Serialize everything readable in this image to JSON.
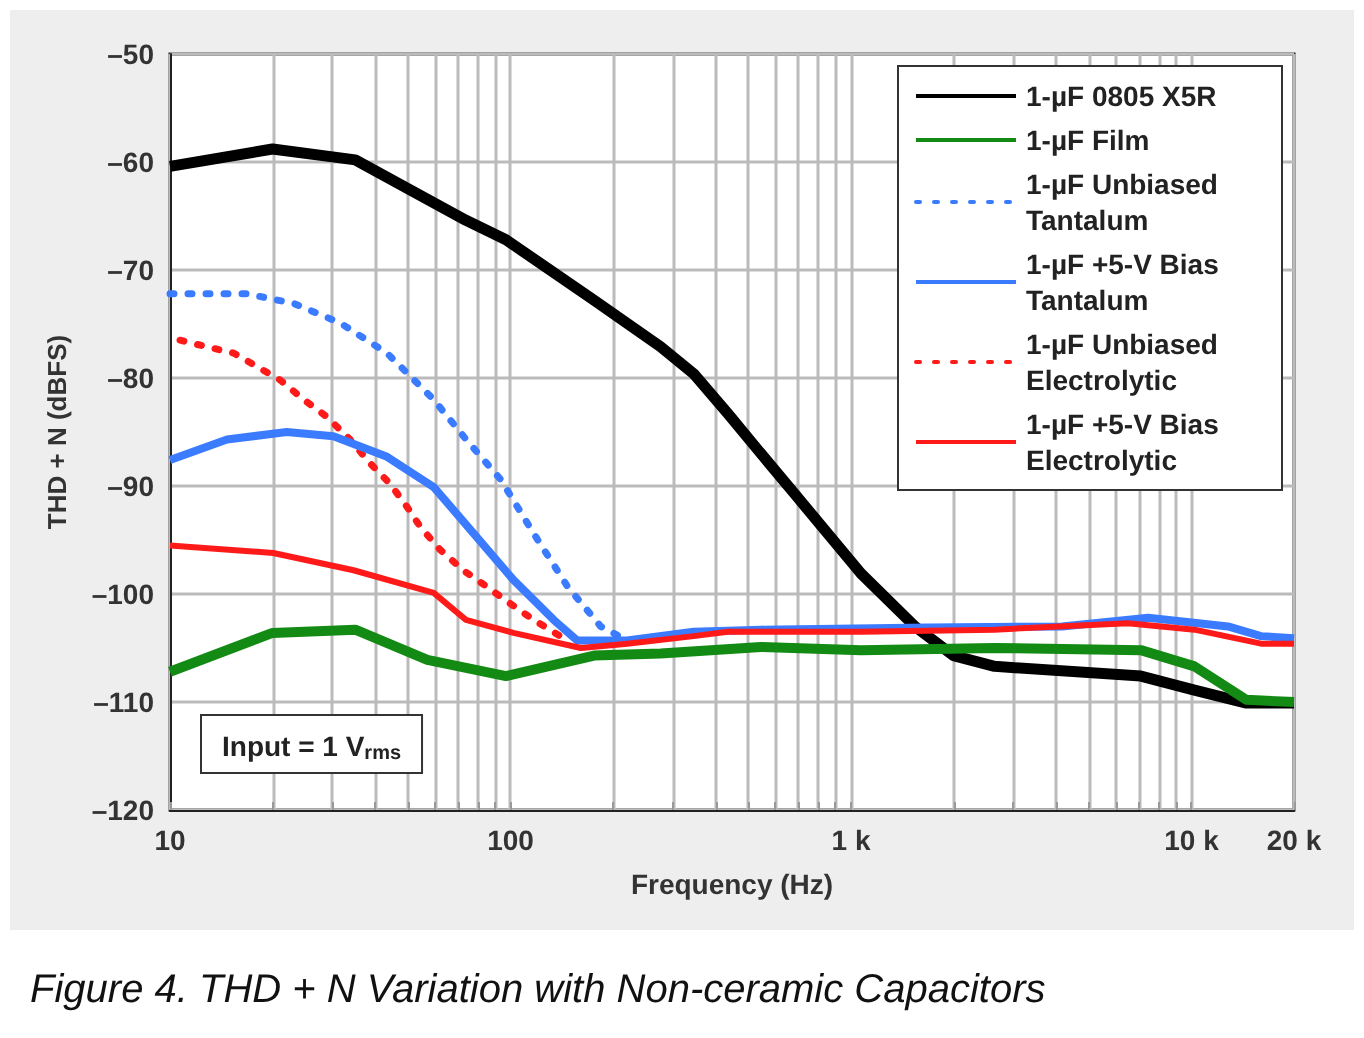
{
  "chart_data": {
    "type": "line",
    "title": "Figure 4. THD + N Variation with Non-ceramic Capacitors",
    "xlabel": "Frequency (Hz)",
    "ylabel": "THD + N (dBFS)",
    "log": "x",
    "grid": true,
    "legend": "top right",
    "marker": "none",
    "xlim": [
      10,
      20000
    ],
    "ylim": [
      -120,
      -50
    ],
    "xticks": [
      10,
      {
        "value": 20,
        "label": null
      },
      {
        "value": 30,
        "label": null
      },
      {
        "value": 40,
        "label": null
      },
      {
        "value": 50,
        "label": null
      },
      {
        "value": 60,
        "label": null
      },
      {
        "value": 70,
        "label": null
      },
      {
        "value": 80,
        "label": null
      },
      {
        "value": 90,
        "label": null
      },
      100,
      {
        "value": 200,
        "label": null
      },
      {
        "value": 300,
        "label": null
      },
      {
        "value": 400,
        "label": null
      },
      {
        "value": 500,
        "label": null
      },
      {
        "value": 600,
        "label": null
      },
      {
        "value": 700,
        "label": null
      },
      {
        "value": 800,
        "label": null
      },
      {
        "value": 900,
        "label": null
      },
      {
        "value": 1000,
        "label": "1 k"
      },
      {
        "value": 2000,
        "label": null
      },
      {
        "value": 3000,
        "label": null
      },
      {
        "value": 4000,
        "label": null
      },
      {
        "value": 5000,
        "label": null
      },
      {
        "value": 6000,
        "label": null
      },
      {
        "value": 7000,
        "label": null
      },
      {
        "value": 8000,
        "label": null
      },
      {
        "value": 9000,
        "label": null
      },
      {
        "value": 10000,
        "label": "10 k"
      },
      {
        "value": 20000,
        "label": "20 k"
      }
    ],
    "yticks": [
      {
        "value": -120,
        "label": "–120"
      },
      {
        "value": -110,
        "label": "–110"
      },
      {
        "value": -100,
        "label": "–100"
      },
      {
        "value": -90,
        "label": "–90"
      },
      {
        "value": -80,
        "label": "–80"
      },
      {
        "value": -70,
        "label": "–70"
      },
      {
        "value": -60,
        "label": "–60"
      },
      {
        "value": -50,
        "label": "–50"
      }
    ],
    "annotations": [
      "Input = 1 V$_{rms}$"
    ],
    "series": [
      {
        "name": "1-µF 0805 X5R",
        "color": "#000000",
        "line_style": "solid",
        "x": [
          10,
          20,
          35,
          74,
          97,
          176,
          276,
          345,
          435,
          544,
          682,
          1070,
          1540,
          2000,
          2640,
          7100,
          10200,
          14500,
          20000
        ],
        "values": [
          -60.4,
          -58.8,
          -59.8,
          -65.4,
          -67.2,
          -72.8,
          -77.1,
          -79.6,
          -83.3,
          -87,
          -90.7,
          -98.1,
          -103,
          -105.7,
          -106.7,
          -107.6,
          -108.9,
          -110.1,
          -110.1
        ]
      },
      {
        "name": "1-µF Film",
        "color": "#138a13",
        "line_style": "solid",
        "x": [
          10,
          20,
          35,
          57,
          97,
          176,
          276,
          544,
          1070,
          2640,
          7100,
          10200,
          14500,
          20000
        ],
        "values": [
          -107.2,
          -103.6,
          -103.3,
          -106.1,
          -107.6,
          -105.7,
          -105.5,
          -104.9,
          -105.2,
          -105,
          -105.2,
          -106.7,
          -109.8,
          -110
        ]
      },
      {
        "name": "1-µF Unbiased Tantalum",
        "color": "#3b7bff",
        "line_style": "dotted",
        "x": [
          10,
          16.8,
          23.1,
          31.6,
          43.4,
          59.5,
          74.1,
          93.6,
          117,
          147,
          184,
          220
        ],
        "values": [
          -72.2,
          -72.2,
          -73.1,
          -74.9,
          -77.7,
          -82,
          -85.7,
          -89.4,
          -94.4,
          -99.3,
          -103,
          -104.3
        ]
      },
      {
        "name": "1-µF +5-V Bias Tantalum",
        "color": "#3b7bff",
        "line_style": "solid",
        "x": [
          10,
          14.7,
          22,
          30.2,
          43.4,
          59.5,
          78,
          102,
          134,
          157,
          220,
          345,
          544,
          1680,
          4170,
          7460,
          12800,
          16000,
          20000
        ],
        "values": [
          -87.6,
          -85.7,
          -85,
          -85.4,
          -87.3,
          -90.1,
          -94.4,
          -98.7,
          -102.4,
          -104.3,
          -104.3,
          -103.5,
          -103.3,
          -103.1,
          -103,
          -102.2,
          -103,
          -103.9,
          -104.1
        ]
      },
      {
        "name": "1-µF Unbiased Electrolytic",
        "color": "#ff1a1a",
        "line_style": "dotted",
        "x": [
          10.7,
          12.8,
          15.4,
          17.9,
          21.1,
          24.7,
          28.9,
          33.8,
          38.7,
          44.3,
          49.6,
          54.4,
          62.1,
          72.6,
          85,
          100,
          117,
          140
        ],
        "values": [
          -76.5,
          -77.1,
          -77.7,
          -78.9,
          -80.2,
          -82,
          -83.6,
          -85.7,
          -87.9,
          -89.8,
          -91.9,
          -93.8,
          -95.9,
          -97.8,
          -99.3,
          -100.9,
          -102.4,
          -103.9
        ]
      },
      {
        "name": "1-µF +5-V Bias Electrolytic",
        "color": "#ff1a1a",
        "line_style": "solid",
        "x": [
          10,
          20.1,
          34.6,
          59.5,
          74,
          102,
          161,
          220,
          345,
          435,
          1070,
          2640,
          6500,
          10200,
          16000,
          20000
        ],
        "values": [
          -95.5,
          -96.2,
          -97.8,
          -99.9,
          -102.4,
          -103.6,
          -105,
          -104.6,
          -103.9,
          -103.5,
          -103.5,
          -103.3,
          -102.7,
          -103.3,
          -104.6,
          -104.6
        ]
      }
    ]
  }
}
